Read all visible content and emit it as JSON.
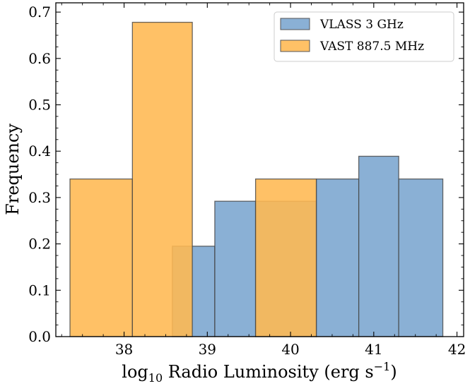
{
  "chart_data": {
    "type": "bar",
    "title": "",
    "xlabel": "log10 Radio Luminosity (erg s^-1)",
    "xlabel_parts": {
      "log": "log",
      "sub": "10",
      "main": " Radio Luminosity (erg s",
      "sup": "−1",
      "close": ")"
    },
    "ylabel": "Frequency",
    "xlim": [
      37.18,
      42.08
    ],
    "ylim": [
      0,
      0.72
    ],
    "xticks": [
      {
        "value": 38,
        "label": "38"
      },
      {
        "value": 39,
        "label": "39"
      },
      {
        "value": 40,
        "label": "40"
      },
      {
        "value": 41,
        "label": "41"
      },
      {
        "value": 42,
        "label": "42"
      }
    ],
    "yticks": [
      {
        "value": 0.0,
        "label": "0.0"
      },
      {
        "value": 0.1,
        "label": "0.1"
      },
      {
        "value": 0.2,
        "label": "0.2"
      },
      {
        "value": 0.3,
        "label": "0.3"
      },
      {
        "value": 0.4,
        "label": "0.4"
      },
      {
        "value": 0.5,
        "label": "0.5"
      },
      {
        "value": 0.6,
        "label": "0.6"
      },
      {
        "value": 0.7,
        "label": "0.7"
      }
    ],
    "legend_position": "top-right",
    "series": [
      {
        "name": "VLASS 3 GHz",
        "color": "#7aa5cf",
        "edges": [
          38.58,
          39.09,
          39.58,
          40.31,
          40.82,
          41.3,
          41.83
        ],
        "values": [
          0.195,
          0.292,
          0.292,
          0.34,
          0.389,
          0.34
        ]
      },
      {
        "name": "VAST 887.5 MHz",
        "color": "#ffb851",
        "edges": [
          37.35,
          38.1,
          38.82,
          39.58,
          40.31
        ],
        "values": [
          0.34,
          0.678,
          0.0,
          0.34
        ]
      }
    ]
  }
}
